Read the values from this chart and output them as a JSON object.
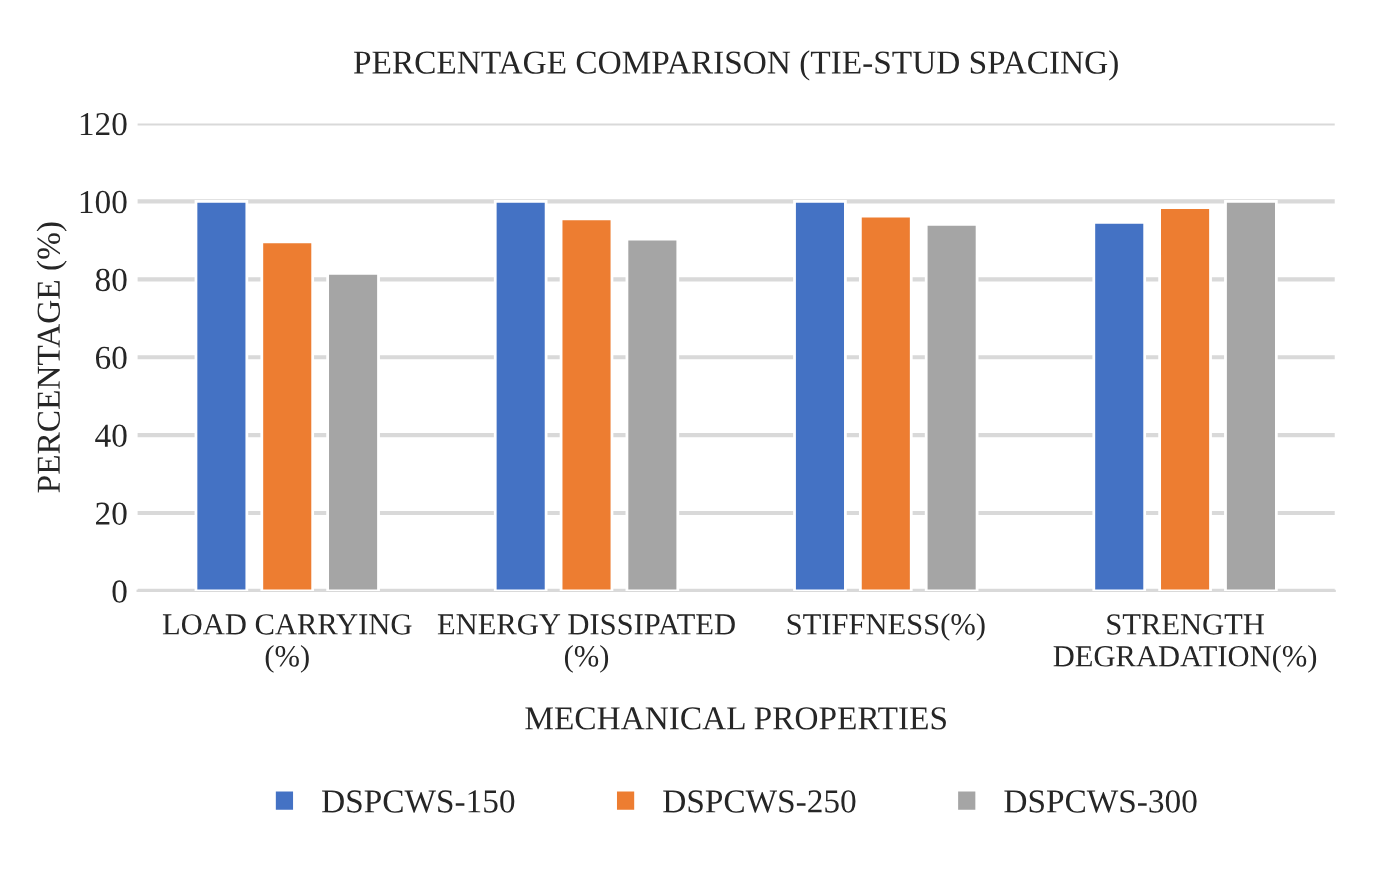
{
  "chart_data": {
    "type": "bar",
    "title": "PERCENTAGE COMPARISON (TIE-STUD SPACING)",
    "xlabel": "MECHANICAL PROPERTIES",
    "ylabel": "PERCENTAGE (%)",
    "categories": [
      "LOAD CARRYING (%)",
      "ENERGY DISSIPATED (%)",
      "STIFFNESS(%)",
      "STRENGTH DEGRADATION(%)"
    ],
    "series": [
      {
        "name": "DSPCWS-150",
        "color": "#4472c4",
        "values": [
          100,
          100,
          100,
          94.6
        ]
      },
      {
        "name": "DSPCWS-250",
        "color": "#ed7d31",
        "values": [
          89.6,
          95.5,
          96.2,
          98.4
        ]
      },
      {
        "name": "DSPCWS-300",
        "color": "#a5a5a5",
        "values": [
          81.5,
          90.3,
          94.1,
          100
        ]
      }
    ],
    "ylim": [
      0,
      120
    ],
    "yticks": [
      0,
      20,
      40,
      60,
      80,
      100,
      120
    ],
    "grid": "y",
    "legend": "bottom"
  }
}
